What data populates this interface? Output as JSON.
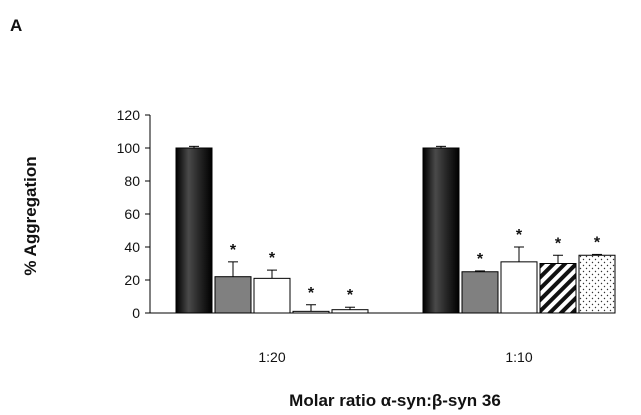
{
  "chart_data": {
    "type": "bar",
    "panel_label": "A",
    "ylabel": "% Aggregation",
    "xlabel": "Molar ratio α-syn:β-syn 36",
    "ylim": [
      0,
      120
    ],
    "yticks": [
      0,
      20,
      40,
      60,
      80,
      100,
      120
    ],
    "grid": false,
    "legend": "none",
    "significance_marker": "*",
    "colors": {
      "black": "#1a1a1a",
      "gray": "#808080",
      "white": "#ffffff",
      "stroke": "#000000"
    },
    "groups": [
      {
        "label": "1:20",
        "bars": [
          {
            "value": 100,
            "error": 1,
            "fill": "black",
            "significant": false
          },
          {
            "value": 22,
            "error": 9,
            "fill": "gray",
            "significant": true
          },
          {
            "value": 21,
            "error": 5,
            "fill": "white",
            "significant": true
          },
          {
            "value": 1,
            "error": 4,
            "fill": "white",
            "significant": true
          },
          {
            "value": 2,
            "error": 1.5,
            "fill": "white",
            "significant": true
          }
        ]
      },
      {
        "label": "1:10",
        "bars": [
          {
            "value": 100,
            "error": 1,
            "fill": "black",
            "significant": false
          },
          {
            "value": 25,
            "error": 0.5,
            "fill": "gray",
            "significant": true
          },
          {
            "value": 31,
            "error": 9,
            "fill": "white",
            "significant": true
          },
          {
            "value": 30,
            "error": 5,
            "fill": "hatch",
            "significant": true
          },
          {
            "value": 35,
            "error": 0.5,
            "fill": "dots",
            "significant": true
          }
        ]
      }
    ]
  }
}
